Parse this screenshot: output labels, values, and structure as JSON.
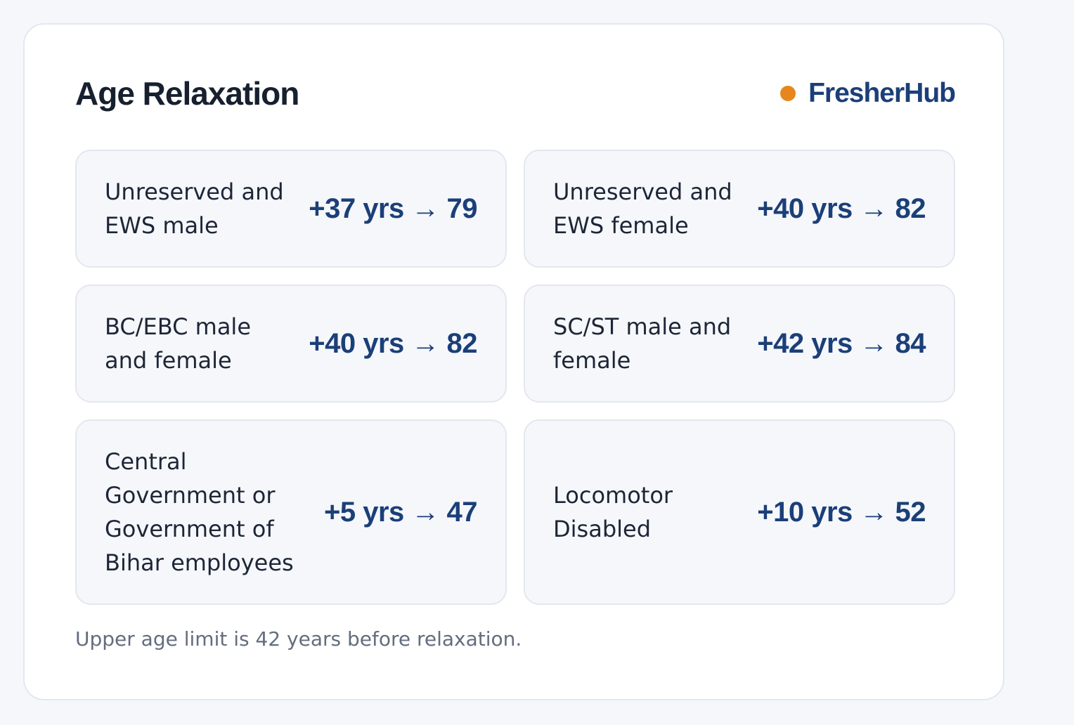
{
  "card": {
    "title": "Age Relaxation",
    "brand": {
      "name": "FresherHub",
      "dot_color": "#e5871c",
      "name_color": "#1b3f78"
    },
    "items": [
      {
        "label": "Unreserved and EWS male",
        "value": "+37 yrs → 79"
      },
      {
        "label": "Unreserved and EWS female",
        "value": "+40 yrs → 82"
      },
      {
        "label": "BC/EBC male and female",
        "value": "+40 yrs → 82"
      },
      {
        "label": "SC/ST male and female",
        "value": "+42 yrs → 84"
      },
      {
        "label": "Central Government or Government of Bihar employees",
        "value": "+5 yrs → 47"
      },
      {
        "label": "Locomotor Disabled",
        "value": "+10 yrs → 52"
      }
    ],
    "footnote": "Upper age limit is 42 years before relaxation."
  }
}
